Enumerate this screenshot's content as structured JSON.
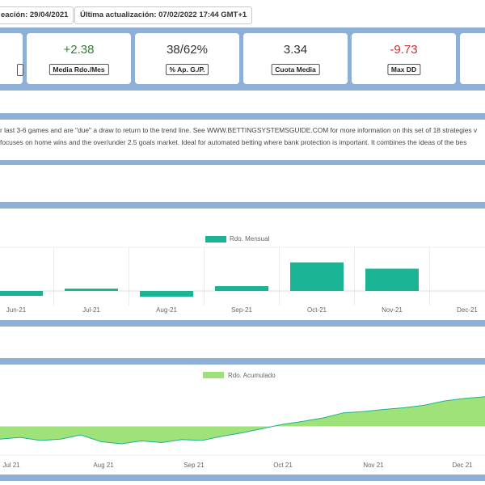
{
  "header": {
    "created_label": "eación: 29/04/2021",
    "updated_label": "Última actualización: 07/02/2022 17:44 GMT+1"
  },
  "stats": [
    {
      "value": "+2.38",
      "label": "Media Rdo./Mes",
      "color": "#2f7d32"
    },
    {
      "value": "38/62%",
      "label": "% Ap. G./P.",
      "color": "#333333"
    },
    {
      "value": "3.34",
      "label": "Cuota Media",
      "color": "#333333"
    },
    {
      "value": "-9.73",
      "label": "Max DD",
      "color": "#d32f2f"
    }
  ],
  "description": {
    "line1": "r last 3-6 games and are \"due\" a draw to return to the trend line. See WWW.BETTINGSYSTEMSGUIDE.COM for more information on this set of 18 strategies v",
    "line2": "focuses on home wins and the over/under 2.5 goals market. Ideal for automated betting where bank protection is important. It combines the ideas of the bes"
  },
  "colors": {
    "band": "#8fb0d6",
    "bar": "#1ab394",
    "area_fill": "#a0e27a",
    "area_line": "#1ab394"
  },
  "chart_data": [
    {
      "type": "bar",
      "title": "",
      "categories": [
        "Jun-21",
        "Jul-21",
        "Aug-21",
        "Sep-21",
        "Oct-21",
        "Nov-21",
        "Dec-21"
      ],
      "series": [
        {
          "name": "Rdo. Mensual",
          "values": [
            -1.0,
            0.5,
            -1.2,
            1.0,
            5.9,
            4.6,
            0
          ]
        }
      ],
      "ylim": [
        -2,
        9
      ],
      "grid": true,
      "legend": "top-center"
    },
    {
      "type": "area",
      "title": "",
      "x_labels": [
        "Jul 21",
        "Aug 21",
        "Sep 21",
        "Oct 21",
        "Nov 21",
        "Dec 21"
      ],
      "series": [
        {
          "name": "Rdo. Acumulado",
          "values": [
            -3.0,
            -2.6,
            -3.3,
            -3.0,
            -2.0,
            -3.6,
            -4.1,
            -3.4,
            -3.8,
            -3.1,
            -3.3,
            -2.3,
            -1.5,
            -0.5,
            0.5,
            1.2,
            2.0,
            3.2,
            3.5,
            4.0,
            4.4,
            5.0,
            6.0,
            6.6,
            7.0
          ]
        }
      ],
      "ylim": [
        -6,
        10
      ],
      "legend": "top-center"
    }
  ]
}
